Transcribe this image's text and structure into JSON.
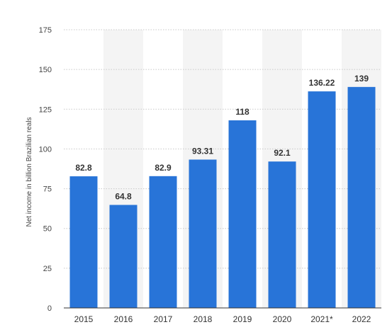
{
  "chart_data": {
    "type": "bar",
    "categories": [
      "2015",
      "2016",
      "2017",
      "2018",
      "2019",
      "2020",
      "2021*",
      "2022"
    ],
    "values": [
      82.8,
      64.8,
      82.9,
      93.31,
      118,
      92.1,
      136.22,
      139
    ],
    "value_labels": [
      "82.8",
      "64.8",
      "82.9",
      "93.31",
      "118",
      "92.1",
      "136.22",
      "139"
    ],
    "ylabel": "Net income in billion Brazilian reals",
    "xlabel": "",
    "ylim": [
      0,
      175
    ],
    "yticks": [
      0,
      25,
      50,
      75,
      100,
      125,
      150,
      175
    ],
    "grid": true,
    "colors": {
      "bar": "#2874d8",
      "band": "#f4f4f4",
      "grid": "#c8c8c8",
      "axis": "#333333"
    }
  }
}
